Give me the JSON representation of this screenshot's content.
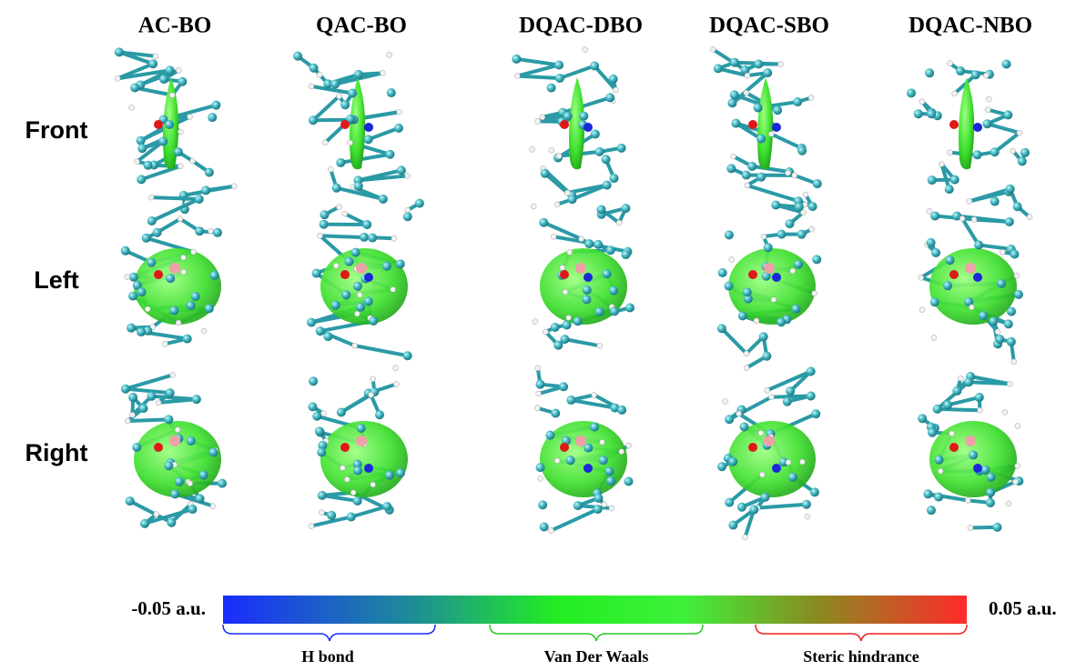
{
  "columns": [
    "AC-BO",
    "QAC-BO",
    "DQAC-DBO",
    "DQAC-SBO",
    "DQAC-NBO"
  ],
  "rows": [
    "Front",
    "Left",
    "Right"
  ],
  "colorbar": {
    "min_label": "-0.05 a.u.",
    "max_label": "0.05 a.u.",
    "regions": [
      "H bond",
      "Van Der Waals",
      "Steric hindrance"
    ]
  }
}
